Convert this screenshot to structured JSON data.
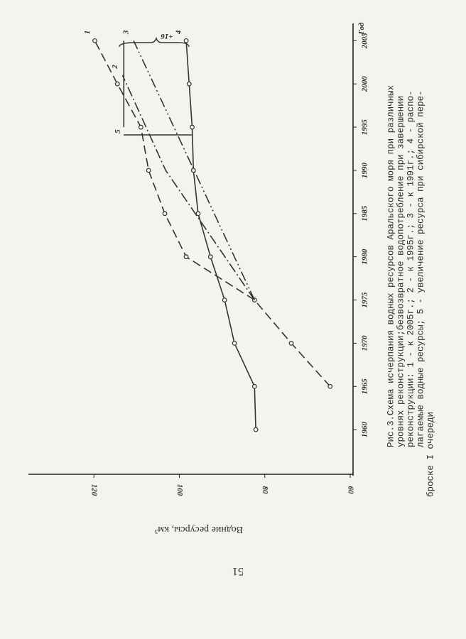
{
  "chart_data": {
    "type": "line",
    "caption": [
      "Рис.3.Схема исчерпания водных ресурсов Аральского моря при различных",
      "уровнях реконструкции;безвозвратное водопотребление при завершении",
      "реконструкции: 1 - к 2005г.; 2 - к 1995г.; 3 - к 1991г.; 4 - распо-",
      "лагаемые водные ресурсы; 5 - увеличение ресурса при сибирской пере-",
      "броске I очереди"
    ],
    "xlabel": "Год",
    "ylabel": "Водние ресурсы, км³",
    "annotation": "+16",
    "page_number": "51",
    "xlim": [
      1955,
      2007
    ],
    "xticks": [
      1960,
      1965,
      1970,
      1975,
      1980,
      1985,
      1990,
      1995,
      2000,
      2005
    ],
    "ylim": [
      59,
      135
    ],
    "yticks": [
      60,
      80,
      100,
      120
    ],
    "series": [
      {
        "name": "1",
        "color": "#333333",
        "style": "dashed",
        "markers": true,
        "x": [
          1965,
          1970,
          1975,
          1980,
          1985,
          1990,
          1995,
          2000,
          2005
        ],
        "values": [
          64.7,
          73.8,
          82.4,
          98.4,
          103.4,
          107.2,
          109,
          114.5,
          119.8
        ]
      },
      {
        "name": "2",
        "color": "#333333",
        "style": "dashdot",
        "markers": false,
        "x": [
          1975,
          1990,
          2001
        ],
        "values": [
          82.4,
          103.2,
          113.3
        ]
      },
      {
        "name": "3",
        "color": "#333333",
        "style": "dashdotdot",
        "markers": false,
        "x": [
          1975,
          2005
        ],
        "values": [
          82.4,
          110.7
        ]
      },
      {
        "name": "4",
        "color": "#333333",
        "style": "solid",
        "markers": true,
        "x": [
          1960,
          1965,
          1970,
          1975,
          1980,
          1985,
          1990,
          1995,
          2000,
          2005
        ],
        "values": [
          82.1,
          82.4,
          87.1,
          89.4,
          92.7,
          95.6,
          96.7,
          97.0,
          97.7,
          98.4
        ]
      },
      {
        "name": "5",
        "color": "#333333",
        "style": "solid",
        "markers": false,
        "x": [
          1995,
          2005
        ],
        "values": [
          113,
          113
        ]
      }
    ]
  }
}
